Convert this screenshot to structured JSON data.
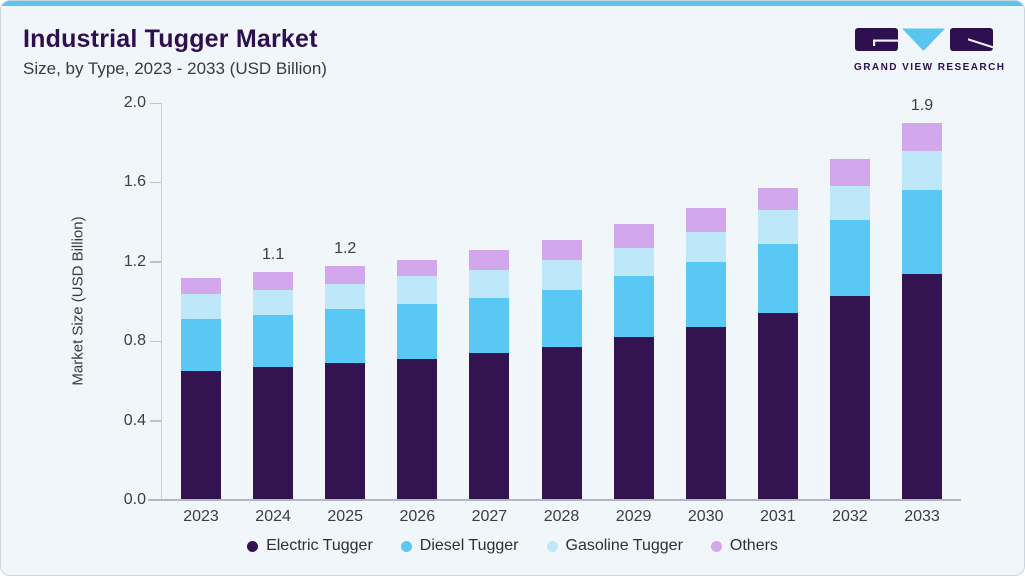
{
  "header": {
    "title": "Industrial Tugger Market",
    "subtitle": "Size, by Type, 2023 - 2033 (USD Billion)"
  },
  "logo": {
    "brand": "GRAND VIEW RESEARCH",
    "icon": "gvr-logo-icon"
  },
  "theme": {
    "accent_bar": "#5ac6f0",
    "title_color": "#2e0f4f",
    "card_bg": "#f1f6fa",
    "axis_text": "#3c3d45"
  },
  "chart_data": {
    "type": "bar",
    "stacked": true,
    "title": "Industrial Tugger Market Size, by Type, 2023 - 2033 (USD Billion)",
    "categories": [
      "2023",
      "2024",
      "2025",
      "2026",
      "2027",
      "2028",
      "2029",
      "2030",
      "2031",
      "2032",
      "2033"
    ],
    "series": [
      {
        "name": "Electric Tugger",
        "color": "#331450",
        "values": [
          0.65,
          0.67,
          0.69,
          0.71,
          0.74,
          0.77,
          0.82,
          0.87,
          0.94,
          1.03,
          1.14
        ]
      },
      {
        "name": "Diesel Tugger",
        "color": "#5ac8f5",
        "values": [
          0.26,
          0.26,
          0.27,
          0.28,
          0.28,
          0.29,
          0.31,
          0.33,
          0.35,
          0.38,
          0.42
        ]
      },
      {
        "name": "Gasoline Tugger",
        "color": "#bfe7fa",
        "values": [
          0.13,
          0.13,
          0.13,
          0.14,
          0.14,
          0.15,
          0.14,
          0.15,
          0.17,
          0.17,
          0.2
        ]
      },
      {
        "name": "Others",
        "color": "#d2a7eb",
        "values": [
          0.08,
          0.09,
          0.09,
          0.08,
          0.1,
          0.1,
          0.12,
          0.12,
          0.11,
          0.14,
          0.14
        ]
      }
    ],
    "totals_labels": {
      "2024": "1.1",
      "2025": "1.2",
      "2033": "1.9"
    },
    "xlabel": "",
    "ylabel": "Market Size (USD Billion)",
    "ylim": [
      0.0,
      2.0
    ],
    "yticks": [
      "0.0",
      "0.4",
      "0.8",
      "1.2",
      "1.6",
      "2.0"
    ],
    "grid": false,
    "legend_position": "bottom"
  }
}
